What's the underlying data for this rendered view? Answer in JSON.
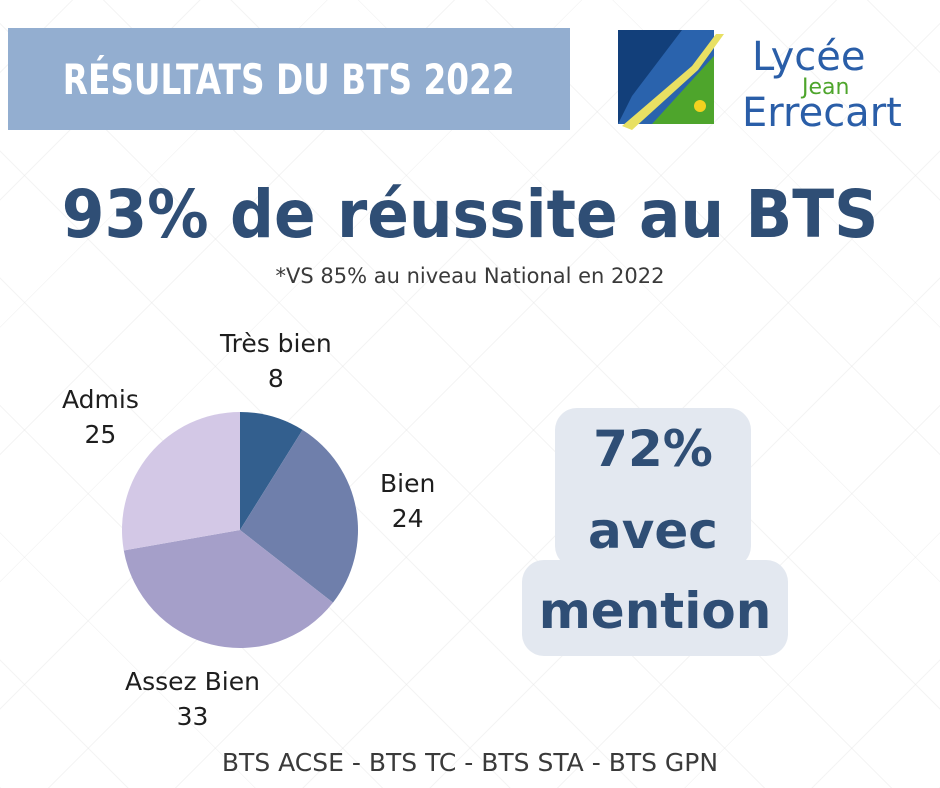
{
  "banner": {
    "title": "RÉSULTATS DU BTS 2022",
    "color": "#93aed0"
  },
  "logo": {
    "line1": "Lycée",
    "line2": "Jean",
    "line3": "Errecart"
  },
  "headline": "93% de réussite au BTS",
  "subnote": "*VS 85% au niveau National en 2022",
  "chart_data": {
    "type": "pie",
    "categories": [
      "Très bien",
      "Bien",
      "Assez Bien",
      "Admis"
    ],
    "values": [
      8,
      24,
      33,
      25
    ],
    "colors": [
      "#335f8e",
      "#6f7fab",
      "#a59fc9",
      "#d3c8e6"
    ],
    "title": "",
    "legend": "labels around pie"
  },
  "mention": {
    "line1": "72%",
    "line2": "avec",
    "line3": "mention"
  },
  "footer": "BTS ACSE - BTS TC - BTS STA - BTS GPN",
  "colors": {
    "text_dark_blue": "#2f4e75",
    "mention_bg": "#e3e8f0"
  }
}
